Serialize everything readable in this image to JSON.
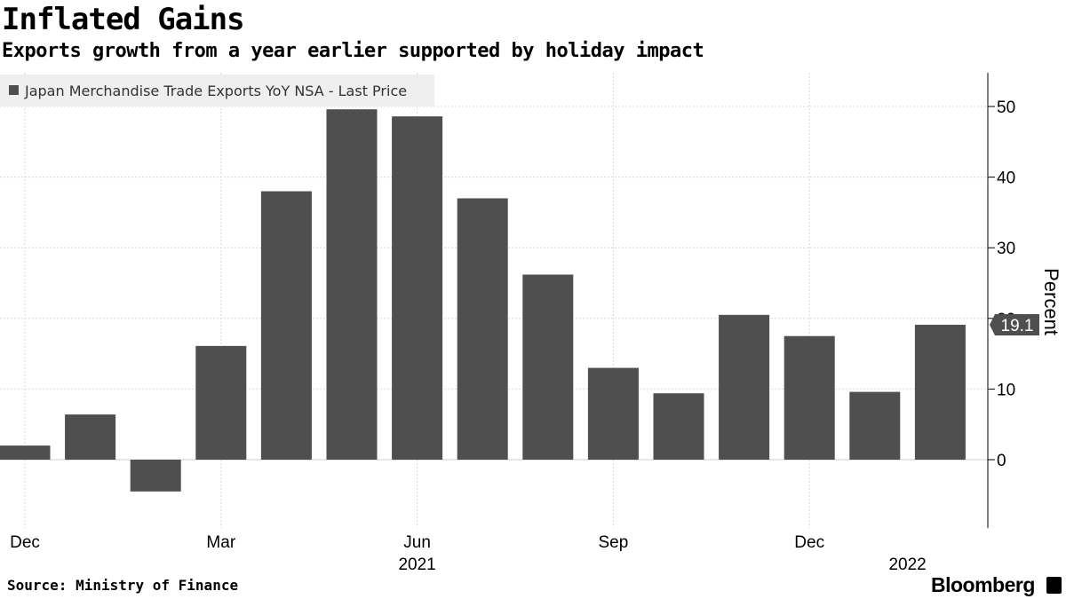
{
  "header": {
    "title": "Inflated Gains",
    "subtitle": "Exports growth from a year earlier supported by holiday impact"
  },
  "footer": {
    "source": "Source: Ministry of Finance",
    "brand": "Bloomberg"
  },
  "chart_data": {
    "type": "bar",
    "title": "Inflated Gains",
    "subtitle": "Exports growth from a year earlier supported by holiday impact",
    "series": [
      {
        "name": "Japan Merchandise Trade Exports YoY NSA - Last Price",
        "color": "#4f4f4f",
        "categories": [
          "Dec 2020",
          "Jan 2021",
          "Feb 2021",
          "Mar 2021",
          "Apr 2021",
          "May 2021",
          "Jun 2021",
          "Jul 2021",
          "Aug 2021",
          "Sep 2021",
          "Oct 2021",
          "Nov 2021",
          "Dec 2021",
          "Jan 2022",
          "Feb 2022"
        ],
        "values": [
          2.0,
          6.4,
          -4.5,
          16.1,
          38.0,
          49.6,
          48.6,
          37.0,
          26.2,
          13.0,
          9.4,
          20.5,
          17.5,
          9.6,
          19.1
        ]
      }
    ],
    "ylabel": "Percent",
    "xlabel": "",
    "ylim": [
      -9.5,
      55
    ],
    "yticks": [
      0,
      10,
      20,
      30,
      40,
      50
    ],
    "xtick_labels": [
      {
        "label": "Dec",
        "index": 0
      },
      {
        "label": "Mar",
        "index": 3
      },
      {
        "label": "Jun",
        "index": 6
      },
      {
        "label": "Sep",
        "index": 9
      },
      {
        "label": "Dec",
        "index": 12
      }
    ],
    "year_labels": [
      {
        "label": "2021",
        "index": 6
      },
      {
        "label": "2022",
        "index": 13.5
      }
    ],
    "last_value_label": "19.1",
    "legend_position": "top-left",
    "grid": true
  }
}
